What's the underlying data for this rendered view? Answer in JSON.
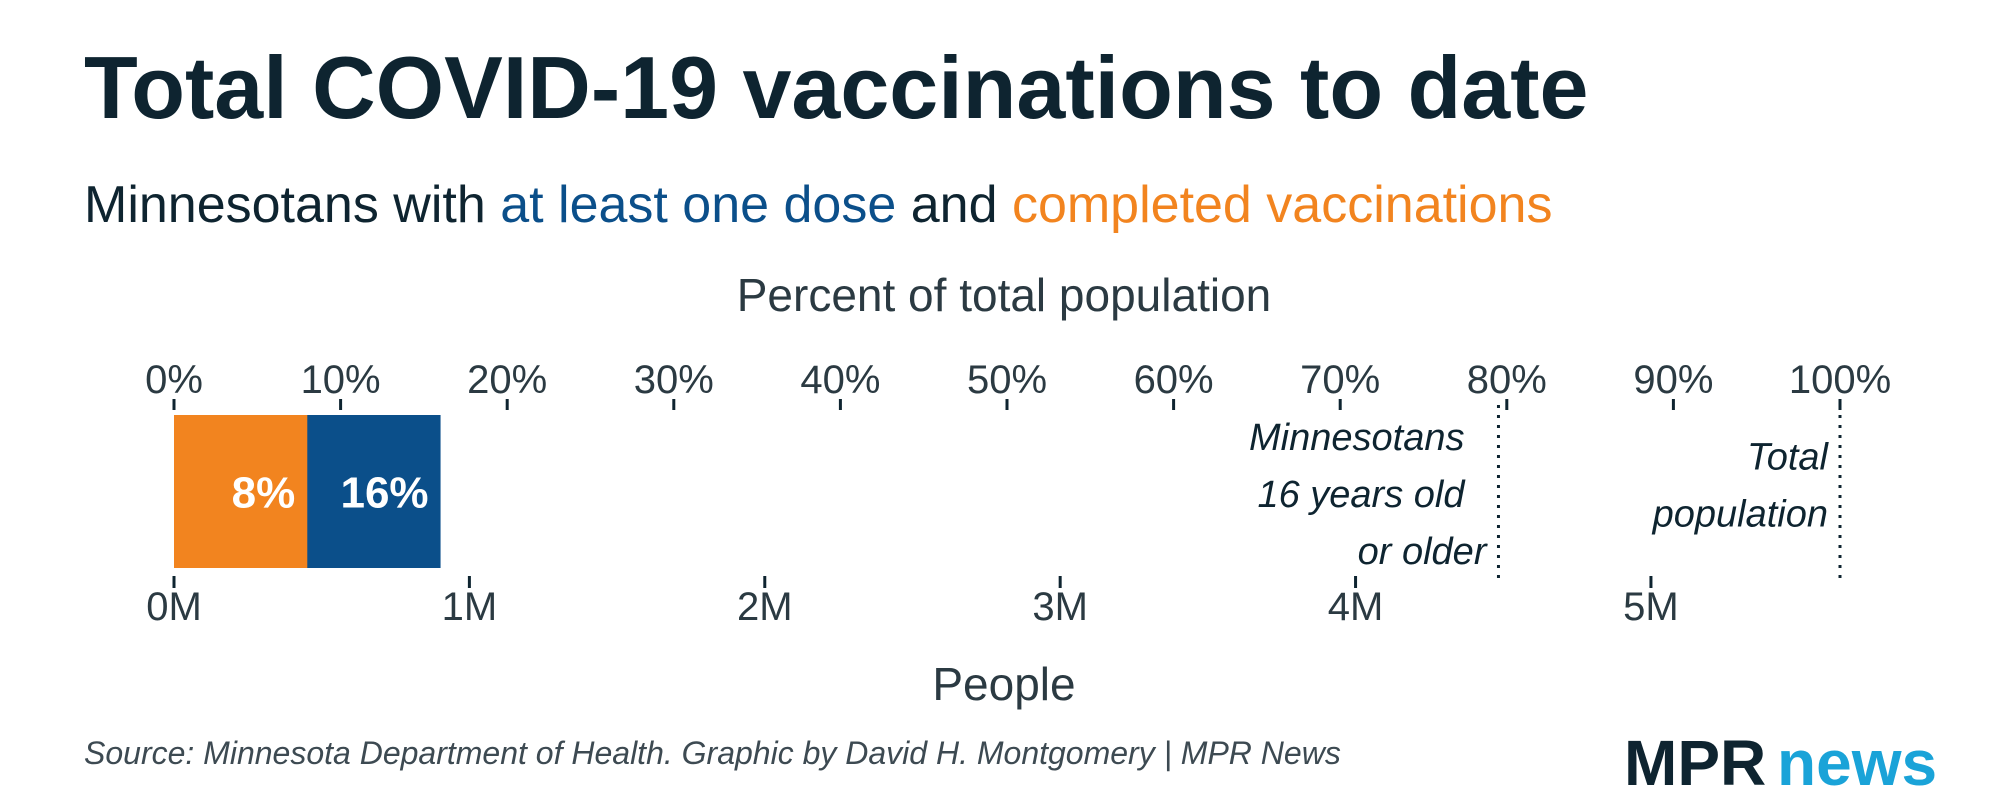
{
  "chart_data": {
    "type": "bar",
    "title": "Total COVID-19 vaccinations to date",
    "subtitle": {
      "prefix": "Minnesotans with ",
      "series_one": "at least one dose",
      "joiner": " and ",
      "series_two": "completed vaccinations"
    },
    "top_axis": {
      "label": "Percent of total population",
      "ticks": [
        "0%",
        "10%",
        "20%",
        "30%",
        "40%",
        "50%",
        "60%",
        "70%",
        "80%",
        "90%",
        "100%"
      ],
      "range": [
        0,
        100
      ]
    },
    "bottom_axis": {
      "label": "People",
      "ticks": [
        {
          "label": "0M",
          "value": 0
        },
        {
          "label": "1M",
          "value": 1000000
        },
        {
          "label": "2M",
          "value": 2000000
        },
        {
          "label": "3M",
          "value": 3000000
        },
        {
          "label": "4M",
          "value": 4000000
        },
        {
          "label": "5M",
          "value": 5000000
        }
      ],
      "max_people": 5640000
    },
    "series": [
      {
        "key": "at_least_one_dose",
        "value_percent": 16,
        "label": "16%",
        "color": "#0b4f8a"
      },
      {
        "key": "completed",
        "value_percent": 8,
        "label": "8%",
        "color": "#f2841f"
      }
    ],
    "reference_lines": [
      {
        "value_percent": 79.5,
        "label_lines": [
          "Minnesotans",
          "16 years old",
          "or older"
        ]
      },
      {
        "value_percent": 100,
        "label_lines": [
          "Total",
          "population"
        ]
      }
    ],
    "grid": false
  },
  "colors": {
    "text": "#0e2430",
    "dose": "#0b4f8a",
    "completed": "#f2841f",
    "logo_dark": "#0e2430",
    "logo_light": "#1aa3d8"
  },
  "source": "Source: Minnesota Department of Health. Graphic by David H. Montgomery | MPR News",
  "logo": {
    "part_one": "MPR",
    "part_two": "news"
  }
}
